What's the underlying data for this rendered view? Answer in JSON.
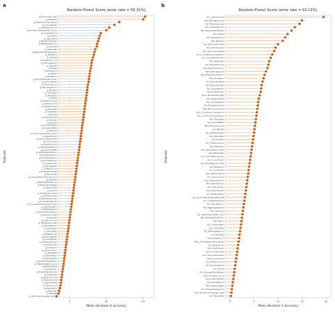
{
  "panels": [
    {
      "letter": "a",
      "chart_data": {
        "type": "scatter",
        "style": "lollipop",
        "title": "Random-Forest Score (error rate = 50.31%)",
        "xlabel": "Mean decrease in accuracy",
        "ylabel": "Features",
        "xlim": [
          -3,
          23
        ],
        "xticks": [
          0,
          10,
          20
        ],
        "grid": false,
        "categories": [
          "g_Brevundimonas",
          "g_Klebsiella",
          "g_Pseudomonas_Group",
          "g_Cronobacter",
          "g_Staphylococcus",
          "g_Sphingomonadaceae_Group",
          "g_Lactobacillus",
          "g_Listeria",
          "g_Spirosoma",
          "g_Bacteroidaceae",
          "g_Bifidobacterium",
          "g_Devosia",
          "g_Veillonella",
          "g_Phascolarctobacterium",
          "g_Neisseria",
          "g_Serratia",
          "g_Streptococcus",
          "g_Sphingopyxis",
          "g_Alistipes",
          "g_Bosea",
          "g_Rhizobium",
          "g_Rothia",
          "g_Roseburia",
          "g_Prevotellaceae_Group",
          "g_Actinomyces",
          "g_Rhodococcus",
          "g_Agrobacterium",
          "g_Bacillus",
          "g_Collinsella",
          "g_Ralstonia",
          "g_Dorea",
          "g_Ruminococcus",
          "g_Micrococcus",
          "g_Akkermansia",
          "g_Moraxella",
          "g_Sutterella",
          "g_Blautia",
          "g_Haemophilus",
          "g_Dialister",
          "g_Erwinia",
          "g_Acinetobacter",
          "g_Anaerostipes",
          "g_Pantoea",
          "g_Lachnospiraceae_Group",
          "g_Leptotrichia",
          "g_Lachnoclostridium",
          "g_UCG_Group",
          "g_Enterococcus",
          "g_Faecalibacterium",
          "g_Granulicatella",
          "g_Sphingobacterium",
          "g_Fusobacterium",
          "g_Flavobacterium",
          "g_Ochrobactrum",
          "g_Comamonas",
          "g_Odoribacter",
          "g_Paracoccus",
          "g_Porphyromonas",
          "g_Tannerella",
          "g_Lachnospiraceae_Group_2",
          "g_Massilia",
          "g_Methylobacterium",
          "g_Hydrogenophaga",
          "g_Aeromonas",
          "g_Kocuria",
          "g_Subdoligranulum",
          "g_Selenomonas",
          "g_Dechloromonas",
          "g_Fusicatenibacter",
          "g_Corynebacteriaceae_Group",
          "g_Desulfovibrio",
          "g_Megasphaera",
          "g_Sediminibacterium",
          "g_Butyricimonas",
          "g_Gemella",
          "g_Coprococcus",
          "g_Parabacteroides",
          "g_Eubacterium",
          "g_Citrobacter",
          "g_Prevotella",
          "g_Megamonas",
          "g_Enterobacter",
          "g_Oscillibacter",
          "g_Aquabacterium",
          "g_Escherichia",
          "g_Lautropia",
          "g_Leuconostoc",
          "g_Weissella",
          "g_Clostridium",
          "g_Caulobacter",
          "g_Janthinobacterium",
          "g_Peptostreptococcus",
          "g_Burkholderia",
          "g_Variovorax",
          "g_Propionibacterium",
          "g_Finegoldia",
          "g_Anaerococcus",
          "g_Peptoniphilus",
          "g_Gardnerella",
          "g_Aerococcus",
          "g_Atopobium",
          "g_Bulleidia",
          "g_Shigella",
          "g_Ruminococcaceae_Group"
        ],
        "x": [
          20.5,
          20.0,
          13.5,
          12.2,
          10.8,
          10.0,
          8.5,
          8.2,
          8.0,
          7.8,
          7.5,
          7.4,
          7.0,
          6.8,
          6.6,
          6.4,
          6.2,
          6.0,
          5.9,
          5.8,
          5.6,
          5.5,
          5.4,
          5.3,
          5.2,
          5.0,
          4.9,
          4.8,
          4.7,
          4.6,
          4.5,
          4.4,
          4.3,
          4.2,
          4.1,
          4.0,
          3.9,
          3.8,
          3.7,
          3.6,
          3.5,
          3.4,
          3.3,
          3.2,
          3.1,
          3.0,
          2.9,
          2.8,
          2.7,
          2.6,
          2.5,
          2.4,
          2.3,
          2.2,
          2.1,
          2.0,
          1.9,
          1.8,
          1.7,
          1.6,
          1.5,
          1.4,
          1.3,
          1.2,
          1.1,
          1.0,
          0.9,
          0.8,
          0.7,
          0.6,
          0.5,
          0.4,
          0.3,
          0.2,
          0.1,
          0.0,
          -0.1,
          -0.2,
          -0.3,
          -0.4,
          -0.5,
          -0.6,
          -0.7,
          -0.8,
          -0.9,
          -1.0,
          -1.1,
          -1.2,
          -1.3,
          -1.4,
          -1.5,
          -1.6,
          -1.7,
          -1.8,
          -1.9,
          -2.0,
          -2.1,
          -2.2,
          -2.3,
          -2.4,
          -2.6,
          -2.8,
          -3.0,
          -3.5
        ],
        "marker_color": "#c55a11",
        "stem_color": "#e8a878"
      }
    },
    {
      "letter": "b",
      "chart_data": {
        "type": "scatter",
        "style": "lollipop",
        "title": "Random-Forest Score (error rate = 53.13%)",
        "xlabel": "Mean decrease in accuracy",
        "ylabel": "Features",
        "xlim": [
          -1,
          21
        ],
        "xticks": [
          0,
          5,
          10,
          15,
          20
        ],
        "grid": false,
        "categories": [
          "Lac_Lactobacillus",
          "Sph_Sphingomonas",
          "Ncl_Pseudomonas",
          "Pro_Cutibacterium",
          "Mor_Pseudanthobacter",
          "Mic_Rothia",
          "Str_Lactobacillus",
          "Bac_Bacillus",
          "Cau_Brevundimonas",
          "Act_Actinomyces",
          "Fla_Capnocytophaga",
          "Uncl_uncultured_bacterium",
          "Cor_Corynebacterium",
          "Vei_Veillonella",
          "Veil_Pseudomonas",
          "Burl_Brevibacterium",
          "Sph_Sphingopyxis",
          "Sph_Methylobacterium",
          "Pas_Hexagona",
          "Cel_Granulicatella",
          "Cel_Pseudomonas",
          "Mic_Rubrobacter",
          "Lep_Leptotrichia",
          "Prom_Parabacteroides",
          "Ver_Akkermansia",
          "Mic_Arthrobacter",
          "Pro_Porphyromonas",
          "Nes_Micrococcaceae",
          "Sacc_uncultured_bacterium",
          "Ass_uncultured_bacterium",
          "Mor_Moraxella",
          "Lac_Unclassified",
          "Mic_Ruminococcus",
          "Lac_Blautia",
          "Lac_Agathobacter",
          "Pas_Prevotella",
          "Vei_Dialister",
          "Str_Streptococcus",
          "Ner_Neisseria",
          "Hla_Haemophilus_HOS",
          "Nei_Bergeyella",
          "Clo_Clostridium_sensu",
          "Sacc_uncultured",
          "Lac_Eubacterium_hallii",
          "Lac_Roseburia",
          "Fin_uncultured",
          "Des_Desulfovibrio",
          "Lac_Coprococcus",
          "Fus_Fusobacterium",
          "Pas_Haemophilus",
          "Lac_Butyrivibrio",
          "Ent_Enterobacter",
          "Lac_Anaerostipes",
          "Lac_Lachnospiraceae_NK4A136",
          "Lac_Fusicatenibacter",
          "Mor_Moraxella_2",
          "Pas_Aggregatibacter",
          "The_Thermus",
          "Lac_Lachnospiraceae_UCG",
          "Sph_Sphingobacterium",
          "Ver_Vibrio",
          "Unc_unidentified",
          "Cor_Collinsella",
          "Bif_Bifidobacterium",
          "Cel_Gemella",
          "Pre_Prevotella_7",
          "Rum_Subdoligranulum_group",
          "Pro_Paracoccus",
          "Gem_Gemmiger",
          "Com_Comamonas",
          "Lac_Lachnospiraceae",
          "Rum_uncultured",
          "Ent_Enterococcus",
          "Acl_Acinetobacter",
          "Lac_Dorea",
          "Ery_Erysipelotrichaceae",
          "Rum_Ruminococcus",
          "Rum_Oscillibacter",
          "Pre_Prevotella_9",
          "Pre_Alloprevotella",
          "Chr_Chryseobacterium",
          "Rum_Ruminococcaceae_UCG",
          "Ent_Raoultella"
        ],
        "x": [
          19.5,
          15.0,
          14.5,
          13.5,
          12.8,
          12.0,
          11.5,
          11.0,
          10.0,
          9.5,
          9.2,
          8.8,
          8.5,
          8.2,
          8.0,
          7.8,
          7.5,
          7.2,
          7.0,
          6.8,
          6.6,
          6.5,
          6.4,
          6.2,
          6.0,
          5.9,
          5.8,
          5.7,
          5.6,
          5.5,
          5.4,
          5.3,
          5.2,
          5.1,
          5.0,
          4.9,
          4.8,
          4.7,
          4.6,
          4.5,
          4.4,
          4.3,
          4.2,
          4.1,
          4.0,
          3.9,
          3.8,
          3.7,
          3.6,
          3.5,
          3.4,
          3.3,
          3.2,
          3.1,
          3.0,
          2.9,
          2.8,
          2.7,
          2.6,
          2.5,
          2.4,
          2.3,
          2.2,
          2.1,
          2.0,
          1.9,
          1.8,
          1.7,
          1.6,
          1.5,
          1.4,
          1.3,
          1.2,
          1.1,
          1.0,
          0.9,
          0.8,
          0.7,
          0.6,
          0.5,
          0.4,
          0.3,
          0.2
        ],
        "marker_color": "#c55a11",
        "stem_color": "#e8a878"
      }
    }
  ]
}
